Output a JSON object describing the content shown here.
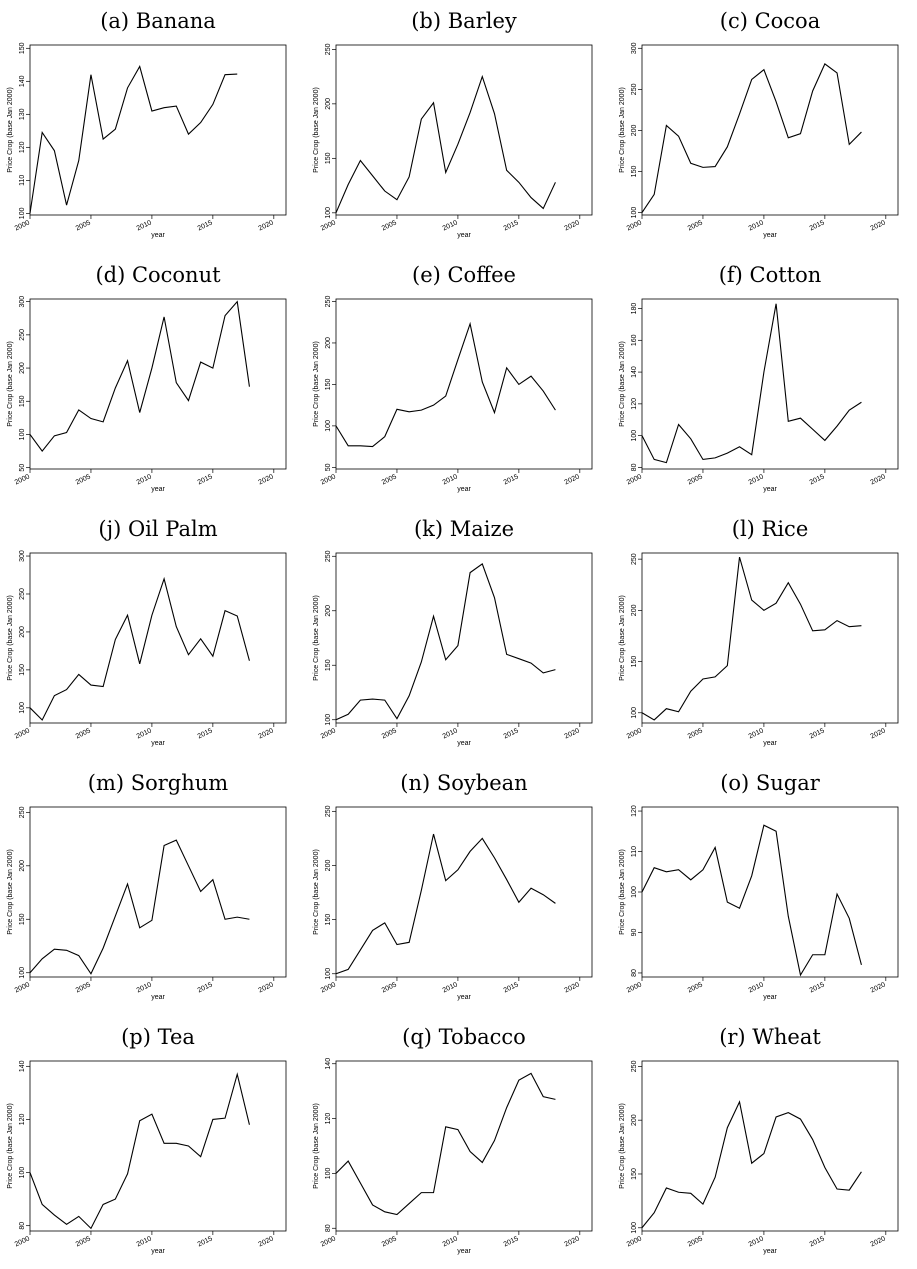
{
  "chart_data": [
    {
      "type": "line",
      "title": "(a) Banana",
      "xlabel": "year",
      "ylabel": "Price Crop (base Jan 2000)",
      "x": [
        2000,
        2001,
        2002,
        2003,
        2004,
        2005,
        2006,
        2007,
        2008,
        2009,
        2010,
        2011,
        2012,
        2013,
        2014,
        2015,
        2016,
        2017,
        2018
      ],
      "values": [
        100,
        124.5,
        119,
        102.5,
        116,
        142,
        122.5,
        125.5,
        138,
        144.5,
        131,
        132,
        132.5,
        124,
        127.5,
        133,
        142,
        142.2,
        null
      ],
      "color": "#000000",
      "xlim": [
        2000,
        2021
      ],
      "xticks": [
        2000,
        2005,
        2010,
        2015,
        2020
      ],
      "ylim": [
        99.5,
        151
      ],
      "yticks": [
        100,
        110,
        120,
        130,
        140,
        150
      ]
    },
    {
      "type": "line",
      "title": "(b) Barley",
      "xlabel": "year",
      "ylabel": "Price Crop (base Jan 2000)",
      "x": [
        2000,
        2001,
        2002,
        2003,
        2004,
        2005,
        2006,
        2007,
        2008,
        2009,
        2010,
        2011,
        2012,
        2013,
        2014,
        2015,
        2016,
        2017,
        2018
      ],
      "values": [
        100,
        126,
        148,
        134,
        120,
        112,
        133,
        186,
        201,
        137,
        163,
        192,
        225,
        191,
        139,
        128,
        114,
        104,
        128
      ],
      "color": "#000000",
      "xlim": [
        2000,
        2021
      ],
      "xticks": [
        2000,
        2005,
        2010,
        2015,
        2020
      ],
      "ylim": [
        98,
        254
      ],
      "yticks": [
        100,
        150,
        200,
        250
      ]
    },
    {
      "type": "line",
      "title": "(c) Cocoa",
      "xlabel": "year",
      "ylabel": "Price Crop (base Jan 2000)",
      "x": [
        2000,
        2001,
        2002,
        2003,
        2004,
        2005,
        2006,
        2007,
        2008,
        2009,
        2010,
        2011,
        2012,
        2013,
        2014,
        2015,
        2016,
        2017,
        2018
      ],
      "values": [
        100,
        122,
        206,
        193,
        160,
        155,
        156,
        180,
        220,
        262,
        274,
        235,
        191,
        196,
        248,
        281,
        270,
        183,
        198
      ],
      "color": "#000000",
      "xlim": [
        2000,
        2021
      ],
      "xticks": [
        2000,
        2005,
        2010,
        2015,
        2020
      ],
      "ylim": [
        97,
        304
      ],
      "yticks": [
        100,
        150,
        200,
        250,
        300
      ]
    },
    {
      "type": "line",
      "title": "(d) Coconut",
      "xlabel": "year",
      "ylabel": "Price Crop (base Jan 2000)",
      "x": [
        2000,
        2001,
        2002,
        2003,
        2004,
        2005,
        2006,
        2007,
        2008,
        2009,
        2010,
        2011,
        2012,
        2013,
        2014,
        2015,
        2016,
        2017,
        2018
      ],
      "values": [
        100,
        75,
        98,
        103,
        137,
        124,
        119,
        170,
        211,
        133,
        200,
        277,
        178,
        151,
        209,
        200,
        279,
        300,
        172
      ],
      "color": "#000000",
      "xlim": [
        2000,
        2021
      ],
      "xticks": [
        2000,
        2005,
        2010,
        2015,
        2020
      ],
      "ylim": [
        48,
        304
      ],
      "yticks": [
        50,
        100,
        150,
        200,
        250,
        300
      ]
    },
    {
      "type": "line",
      "title": "(e) Coffee",
      "xlabel": "year",
      "ylabel": "Price Crop (base Jan 2000)",
      "x": [
        2000,
        2001,
        2002,
        2003,
        2004,
        2005,
        2006,
        2007,
        2008,
        2009,
        2010,
        2011,
        2012,
        2013,
        2014,
        2015,
        2016,
        2017,
        2018
      ],
      "values": [
        100,
        76,
        76,
        75,
        87,
        120,
        117,
        119,
        125,
        136,
        180,
        223,
        153,
        116,
        170,
        150,
        160,
        142,
        119
      ],
      "color": "#000000",
      "xlim": [
        2000,
        2021
      ],
      "xticks": [
        2000,
        2005,
        2010,
        2015,
        2020
      ],
      "ylim": [
        48,
        253
      ],
      "yticks": [
        50,
        100,
        150,
        200,
        250
      ]
    },
    {
      "type": "line",
      "title": "(f) Cotton",
      "xlabel": "year",
      "ylabel": "Price Crop (base Jan 2000)",
      "x": [
        2000,
        2001,
        2002,
        2003,
        2004,
        2005,
        2006,
        2007,
        2008,
        2009,
        2010,
        2011,
        2012,
        2013,
        2014,
        2015,
        2016,
        2017,
        2018
      ],
      "values": [
        100,
        85,
        83,
        107,
        98,
        85,
        86,
        89,
        93,
        88,
        140,
        183,
        109,
        111,
        104,
        97,
        106,
        116,
        121
      ],
      "color": "#000000",
      "xlim": [
        2000,
        2021
      ],
      "xticks": [
        2000,
        2005,
        2010,
        2015,
        2020
      ],
      "ylim": [
        79,
        186
      ],
      "yticks": [
        80,
        100,
        120,
        140,
        160,
        180
      ]
    },
    {
      "type": "line",
      "title": "(j) Oil Palm",
      "xlabel": "year",
      "ylabel": "Price Crop (base Jan 2000)",
      "x": [
        2000,
        2001,
        2002,
        2003,
        2004,
        2005,
        2006,
        2007,
        2008,
        2009,
        2010,
        2011,
        2012,
        2013,
        2014,
        2015,
        2016,
        2017,
        2018
      ],
      "values": [
        100,
        84,
        116,
        124,
        144,
        130,
        128,
        190,
        222,
        158,
        222,
        270,
        207,
        170,
        191,
        168,
        228,
        221,
        162
      ],
      "color": "#000000",
      "xlim": [
        2000,
        2021
      ],
      "xticks": [
        2000,
        2005,
        2010,
        2015,
        2020
      ],
      "ylim": [
        80,
        304
      ],
      "yticks": [
        100,
        150,
        200,
        250,
        300
      ]
    },
    {
      "type": "line",
      "title": "(k) Maize",
      "xlabel": "year",
      "ylabel": "Price Crop (base Jan 2000)",
      "x": [
        2000,
        2001,
        2002,
        2003,
        2004,
        2005,
        2006,
        2007,
        2008,
        2009,
        2010,
        2011,
        2012,
        2013,
        2014,
        2015,
        2016,
        2017,
        2018
      ],
      "values": [
        100,
        105,
        118,
        119,
        118,
        101,
        122,
        153,
        195,
        155,
        168,
        235,
        243,
        212,
        160,
        156,
        152,
        143,
        146
      ],
      "color": "#000000",
      "xlim": [
        2000,
        2021
      ],
      "xticks": [
        2000,
        2005,
        2010,
        2015,
        2020
      ],
      "ylim": [
        97,
        253
      ],
      "yticks": [
        100,
        150,
        200,
        250
      ]
    },
    {
      "type": "line",
      "title": "(l) Rice",
      "xlabel": "year",
      "ylabel": "Price Crop (base Jan 2000)",
      "x": [
        2000,
        2001,
        2002,
        2003,
        2004,
        2005,
        2006,
        2007,
        2008,
        2009,
        2010,
        2011,
        2012,
        2013,
        2014,
        2015,
        2016,
        2017,
        2018
      ],
      "values": [
        100,
        93,
        104,
        101,
        121,
        133,
        135,
        146,
        252,
        210,
        200,
        207,
        227,
        206,
        180,
        181,
        190,
        184,
        185
      ],
      "color": "#000000",
      "xlim": [
        2000,
        2021
      ],
      "xticks": [
        2000,
        2005,
        2010,
        2015,
        2020
      ],
      "ylim": [
        90,
        256
      ],
      "yticks": [
        100,
        150,
        200,
        250
      ]
    },
    {
      "type": "line",
      "title": "(m) Sorghum",
      "xlabel": "year",
      "ylabel": "Price Crop (base Jan 2000)",
      "x": [
        2000,
        2001,
        2002,
        2003,
        2004,
        2005,
        2006,
        2007,
        2008,
        2009,
        2010,
        2011,
        2012,
        2013,
        2014,
        2015,
        2016,
        2017,
        2018
      ],
      "values": [
        100,
        113,
        122,
        121,
        116,
        99,
        123,
        153,
        183,
        142,
        149,
        219,
        224,
        200,
        176,
        187,
        150,
        152,
        150
      ],
      "color": "#000000",
      "xlim": [
        2000,
        2021
      ],
      "xticks": [
        2000,
        2005,
        2010,
        2015,
        2020
      ],
      "ylim": [
        96,
        255
      ],
      "yticks": [
        100,
        150,
        200,
        250
      ]
    },
    {
      "type": "line",
      "title": "(n) Soybean",
      "xlabel": "year",
      "ylabel": "Price Crop (base Jan 2000)",
      "x": [
        2000,
        2001,
        2002,
        2003,
        2004,
        2005,
        2006,
        2007,
        2008,
        2009,
        2010,
        2011,
        2012,
        2013,
        2014,
        2015,
        2016,
        2017,
        2018
      ],
      "values": [
        100,
        104,
        122,
        140,
        147,
        127,
        129,
        177,
        229,
        186,
        196,
        213,
        225,
        207,
        187,
        166,
        179,
        173,
        165
      ],
      "color": "#000000",
      "xlim": [
        2000,
        2021
      ],
      "xticks": [
        2000,
        2005,
        2010,
        2015,
        2020
      ],
      "ylim": [
        97,
        254
      ],
      "yticks": [
        100,
        150,
        200,
        250
      ]
    },
    {
      "type": "line",
      "title": "(o) Sugar",
      "xlabel": "year",
      "ylabel": "Price Crop (base Jan 2000)",
      "x": [
        2000,
        2001,
        2002,
        2003,
        2004,
        2005,
        2006,
        2007,
        2008,
        2009,
        2010,
        2011,
        2012,
        2013,
        2014,
        2015,
        2016,
        2017,
        2018
      ],
      "values": [
        100,
        106,
        105,
        105.5,
        103,
        105.5,
        111,
        97.5,
        96,
        104,
        116.5,
        115,
        94,
        79.5,
        84.5,
        84.5,
        99.5,
        93.5,
        82
      ],
      "color": "#000000",
      "xlim": [
        2000,
        2021
      ],
      "xticks": [
        2000,
        2005,
        2010,
        2015,
        2020
      ],
      "ylim": [
        79,
        121
      ],
      "yticks": [
        80,
        90,
        100,
        110,
        120
      ]
    },
    {
      "type": "line",
      "title": "(p) Tea",
      "xlabel": "year",
      "ylabel": "Price Crop (base Jan 2000)",
      "x": [
        2000,
        2001,
        2002,
        2003,
        2004,
        2005,
        2006,
        2007,
        2008,
        2009,
        2010,
        2011,
        2012,
        2013,
        2014,
        2015,
        2016,
        2017,
        2018
      ],
      "values": [
        100,
        88,
        84,
        80.5,
        83.5,
        79,
        88,
        90,
        99.5,
        119.5,
        122,
        111,
        111,
        110,
        106,
        120,
        120.5,
        137,
        118
      ],
      "color": "#000000",
      "xlim": [
        2000,
        2021
      ],
      "xticks": [
        2000,
        2005,
        2010,
        2015,
        2020
      ],
      "ylim": [
        78,
        142
      ],
      "yticks": [
        80,
        100,
        120,
        140
      ]
    },
    {
      "type": "line",
      "title": "(q) Tobacco",
      "xlabel": "year",
      "ylabel": "Price Crop (base Jan 2000)",
      "x": [
        2000,
        2001,
        2002,
        2003,
        2004,
        2005,
        2006,
        2007,
        2008,
        2009,
        2010,
        2011,
        2012,
        2013,
        2014,
        2015,
        2016,
        2017,
        2018
      ],
      "values": [
        100,
        104.5,
        96.5,
        88.5,
        86,
        85,
        89,
        93,
        93,
        117,
        116,
        108,
        104,
        112,
        124,
        134,
        136.5,
        128,
        127
      ],
      "color": "#000000",
      "xlim": [
        2000,
        2021
      ],
      "xticks": [
        2000,
        2005,
        2010,
        2015,
        2020
      ],
      "ylim": [
        79,
        141
      ],
      "yticks": [
        80,
        100,
        120,
        140
      ]
    },
    {
      "type": "line",
      "title": "(r) Wheat",
      "xlabel": "year",
      "ylabel": "Price Crop (base Jan 2000)",
      "x": [
        2000,
        2001,
        2002,
        2003,
        2004,
        2005,
        2006,
        2007,
        2008,
        2009,
        2010,
        2011,
        2012,
        2013,
        2014,
        2015,
        2016,
        2017,
        2018
      ],
      "values": [
        100,
        114,
        137,
        133,
        132,
        122,
        147,
        193,
        217,
        160,
        169,
        203,
        207,
        201,
        182,
        156,
        136,
        135,
        152
      ],
      "color": "#000000",
      "xlim": [
        2000,
        2021
      ],
      "xticks": [
        2000,
        2005,
        2010,
        2015,
        2020
      ],
      "ylim": [
        97,
        255
      ],
      "yticks": [
        100,
        150,
        200,
        250
      ]
    }
  ]
}
